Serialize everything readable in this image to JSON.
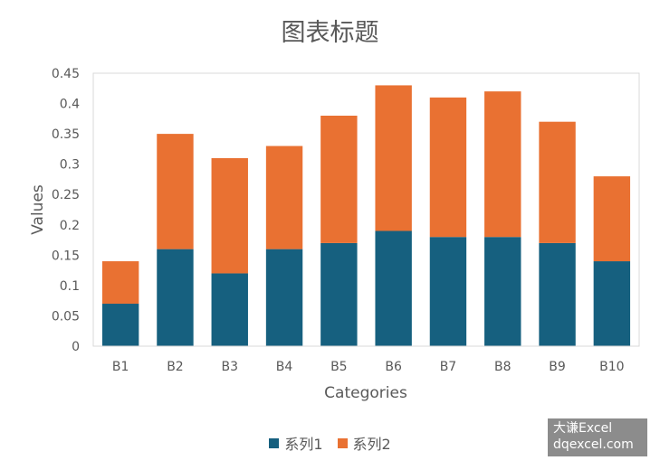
{
  "chart_data": {
    "type": "bar",
    "stacked": true,
    "title": "图表标题",
    "xlabel": "Categories",
    "ylabel": "Values",
    "categories": [
      "B1",
      "B2",
      "B3",
      "B4",
      "B5",
      "B6",
      "B7",
      "B8",
      "B9",
      "B10"
    ],
    "series": [
      {
        "name": "系列1",
        "color": "#16607f",
        "values": [
          0.07,
          0.16,
          0.12,
          0.16,
          0.17,
          0.19,
          0.18,
          0.18,
          0.17,
          0.14
        ]
      },
      {
        "name": "系列2",
        "color": "#e97132",
        "values": [
          0.07,
          0.19,
          0.19,
          0.17,
          0.21,
          0.24,
          0.23,
          0.24,
          0.2,
          0.14
        ]
      }
    ],
    "ylim": [
      0,
      0.45
    ],
    "yticks": [
      "0",
      "0.05",
      "0.1",
      "0.15",
      "0.2",
      "0.25",
      "0.3",
      "0.35",
      "0.4",
      "0.45"
    ],
    "grid": false,
    "legend_position": "bottom"
  },
  "watermark": {
    "line1": "大谦Excel",
    "line2": "dqexcel.com"
  }
}
